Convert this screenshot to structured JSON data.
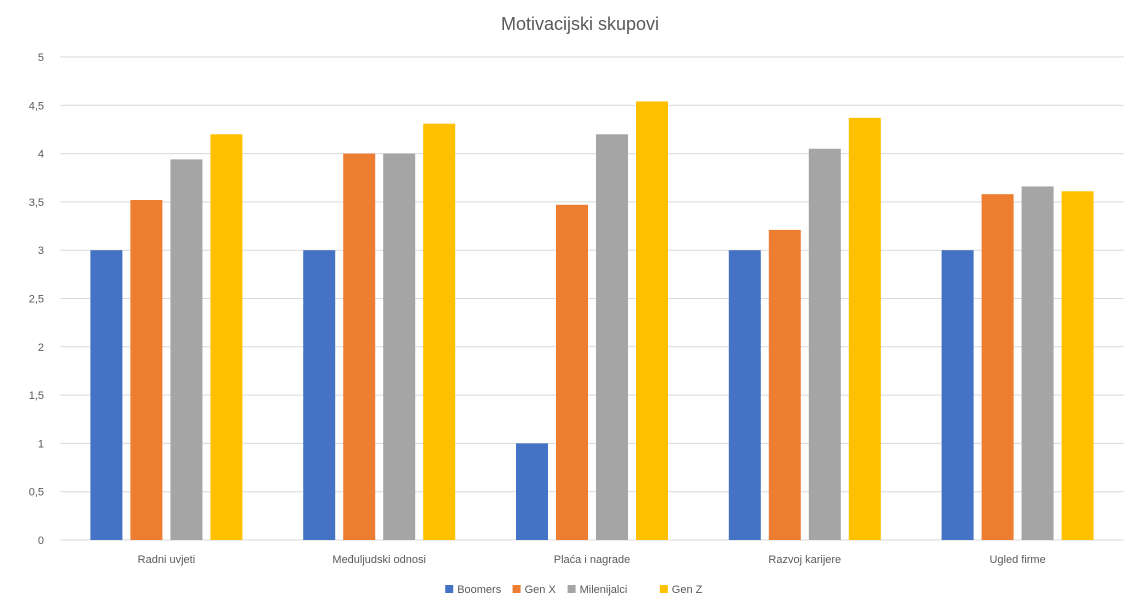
{
  "chart_data": {
    "type": "bar",
    "title": "Motivacijski skupovi",
    "xlabel": "",
    "ylabel": "",
    "ylim": [
      0,
      5
    ],
    "y_ticks": [
      "0",
      "0,5",
      "1",
      "1,5",
      "2",
      "2,5",
      "3",
      "3,5",
      "4",
      "4,5",
      "5"
    ],
    "y_tick_values": [
      0,
      0.5,
      1,
      1.5,
      2,
      2.5,
      3,
      3.5,
      4,
      4.5,
      5
    ],
    "grid": true,
    "legend_position": "bottom",
    "categories": [
      "Radni uvjeti",
      "Međuljudski odnosi",
      "Plaća i nagrade",
      "Razvoj karijere",
      "Ugled firme"
    ],
    "series": [
      {
        "name": "Boomers",
        "color": "#4472C4",
        "values": [
          3,
          3,
          1,
          3,
          3
        ]
      },
      {
        "name": "Gen X",
        "color": "#ED7D31",
        "values": [
          3.52,
          4.0,
          3.47,
          3.21,
          3.58
        ]
      },
      {
        "name": "Milenijalci",
        "color": "#A5A5A5",
        "values": [
          3.94,
          4.0,
          4.2,
          4.05,
          3.66
        ]
      },
      {
        "name": "Gen Z",
        "color": "#FFC000",
        "values": [
          4.2,
          4.31,
          4.54,
          4.37,
          3.61
        ]
      }
    ]
  }
}
